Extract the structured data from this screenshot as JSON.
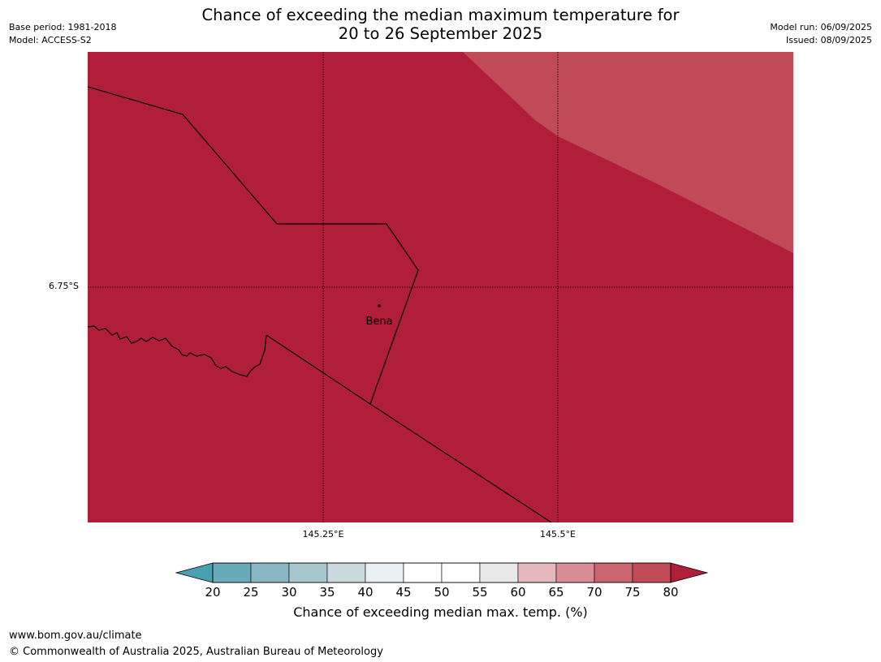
{
  "header": {
    "title_line1": "Chance of exceeding the median maximum temperature for",
    "title_line2": "20 to 26 September 2025",
    "base_period": "Base period: 1981-2018",
    "model": "Model: ACCESS-S2",
    "model_run": "Model run: 06/09/2025",
    "issued": "Issued: 08/09/2025"
  },
  "map": {
    "place_label": "Bena",
    "lat_label": "6.75°S",
    "lon_labels": [
      "145.25°E",
      "145.5°E"
    ],
    "colors": {
      "dominant_80plus": "#b01e3a",
      "band_75_80": "#c04a56"
    }
  },
  "colorbar": {
    "title": "Chance of exceeding median max. temp. (%)",
    "ticks": [
      "20",
      "25",
      "30",
      "35",
      "40",
      "45",
      "50",
      "55",
      "60",
      "65",
      "70",
      "75",
      "80"
    ],
    "colors": [
      "#6aabba",
      "#8ab6c3",
      "#a8c6cd",
      "#cad9dd",
      "#e8f0f2",
      "#ffffff",
      "#ffffff",
      "#e8e8e8",
      "#e4b8bd",
      "#d88c95",
      "#cb6570",
      "#c04a56"
    ],
    "under_color": "#4aa0b0",
    "over_color": "#b01e3a"
  },
  "footer": {
    "url": "www.bom.gov.au/climate",
    "copyright": "© Commonwealth of Australia 2025, Australian Bureau of Meteorology"
  }
}
